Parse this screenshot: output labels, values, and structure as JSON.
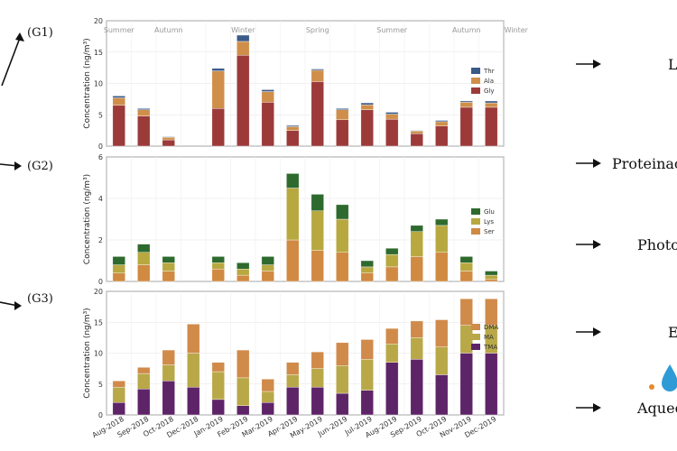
{
  "chart_data": [
    {
      "type": "bar",
      "stacked": true,
      "panel_label": "(G1)",
      "ylabel": "Concentration (ng/m³)",
      "ylim": [
        0,
        20
      ],
      "yticks": [
        0,
        5,
        10,
        15,
        20
      ],
      "grid": true,
      "legend_position": "right",
      "seasons": [
        {
          "label": "Summer",
          "start": 0,
          "end": 1
        },
        {
          "label": "Autumn",
          "start": 1,
          "end": 4
        },
        {
          "label": "Winter",
          "start": 4,
          "end": 7
        },
        {
          "label": "Spring",
          "start": 7,
          "end": 10
        },
        {
          "label": "Summer",
          "start": 10,
          "end": 13
        },
        {
          "label": "Autumn",
          "start": 13,
          "end": 16
        },
        {
          "label": "Winter",
          "start": 16,
          "end": 17
        }
      ],
      "series": [
        {
          "name": "Gly",
          "color": "#9c3a3a",
          "values": [
            6.5,
            4.8,
            1.0,
            6.0,
            14.5,
            7.0,
            2.5,
            10.3,
            4.2,
            5.8,
            4.3,
            2.0,
            3.2,
            6.2,
            6.2
          ]
        },
        {
          "name": "Ala",
          "color": "#cf8f4a",
          "values": [
            1.2,
            1.0,
            0.4,
            6.0,
            2.2,
            1.7,
            0.6,
            1.8,
            1.6,
            0.8,
            0.8,
            0.4,
            0.7,
            0.8,
            0.7
          ]
        },
        {
          "name": "Thr",
          "color": "#3a5a88",
          "values": [
            0.3,
            0.2,
            0.1,
            0.4,
            1.0,
            0.3,
            0.2,
            0.2,
            0.2,
            0.3,
            0.3,
            0.1,
            0.2,
            0.2,
            0.3
          ]
        }
      ]
    },
    {
      "type": "bar",
      "stacked": true,
      "panel_label": "(G2)",
      "ylabel": "Concentration (ng/m³)",
      "ylim": [
        0,
        6
      ],
      "yticks": [
        0,
        2,
        4,
        6
      ],
      "grid": true,
      "legend_position": "right",
      "series": [
        {
          "name": "Ser",
          "color": "#d08a42",
          "values": [
            0.4,
            0.8,
            0.5,
            0.6,
            0.3,
            0.5,
            2.0,
            1.5,
            1.4,
            0.4,
            0.7,
            1.2,
            1.4,
            0.5,
            0.1
          ]
        },
        {
          "name": "Lys",
          "color": "#b8a840",
          "values": [
            0.4,
            0.6,
            0.4,
            0.3,
            0.3,
            0.3,
            2.5,
            1.9,
            1.6,
            0.3,
            0.6,
            1.2,
            1.3,
            0.4,
            0.2
          ]
        },
        {
          "name": "Glu",
          "color": "#2e6a2e",
          "values": [
            0.4,
            0.4,
            0.3,
            0.3,
            0.3,
            0.4,
            0.7,
            0.8,
            0.7,
            0.3,
            0.3,
            0.3,
            0.3,
            0.3,
            0.2
          ]
        }
      ]
    },
    {
      "type": "bar",
      "stacked": true,
      "panel_label": "(G3)",
      "ylabel": "Concentration (ng/m³)",
      "ylim": [
        0,
        20
      ],
      "yticks": [
        0,
        5,
        10,
        15,
        20
      ],
      "grid": true,
      "legend_position": "right",
      "categories": [
        "Aug-2018",
        "Sep-2018",
        "Oct-2018",
        "Dec-2018",
        "Jan-2019",
        "Feb-2019",
        "Mar-2019",
        "Apr-2019",
        "May-2019",
        "Jun-2019",
        "Jul-2019",
        "Aug-2019",
        "Sep-2019",
        "Oct-2019",
        "Nov-2019",
        "Dec-2019"
      ],
      "bar_categories": [
        "Aug-2018",
        "Sep-2018",
        "Oct-2018",
        "Dec-2018",
        "Jan-2019",
        "Feb-2019",
        "Mar-2019",
        "Apr-2019",
        "May-2019",
        "Jun-2019",
        "Jul-2019",
        "Aug-2019",
        "Sep-2019",
        "Oct-2019",
        "Nov-2019",
        "Dec-2019"
      ],
      "series": [
        {
          "name": "TMA",
          "color": "#5e2468",
          "values": [
            2.0,
            4.2,
            5.5,
            4.5,
            2.5,
            1.5,
            2.0,
            4.5,
            4.5,
            3.5,
            4.0,
            8.5,
            9.0,
            6.5,
            10.0,
            10.0
          ]
        },
        {
          "name": "MA",
          "color": "#b8a848",
          "values": [
            2.5,
            2.5,
            2.6,
            5.5,
            4.5,
            4.5,
            1.8,
            2.0,
            3.0,
            4.5,
            5.0,
            3.0,
            3.5,
            4.5,
            4.5,
            4.5
          ]
        },
        {
          "name": "DMA",
          "color": "#d08a4a",
          "values": [
            1.0,
            1.0,
            2.4,
            4.7,
            1.5,
            4.5,
            2.0,
            2.0,
            2.7,
            3.7,
            3.2,
            2.5,
            2.7,
            4.4,
            4.3,
            4.3
          ]
        }
      ]
    }
  ],
  "side_labels": [
    {
      "text": "Le",
      "y": 75
    },
    {
      "text": "Proteinac",
      "y": 185
    },
    {
      "text": "Photo",
      "y": 275
    },
    {
      "text": "E",
      "y": 372
    },
    {
      "text": "Aqueo",
      "y": 456
    }
  ]
}
